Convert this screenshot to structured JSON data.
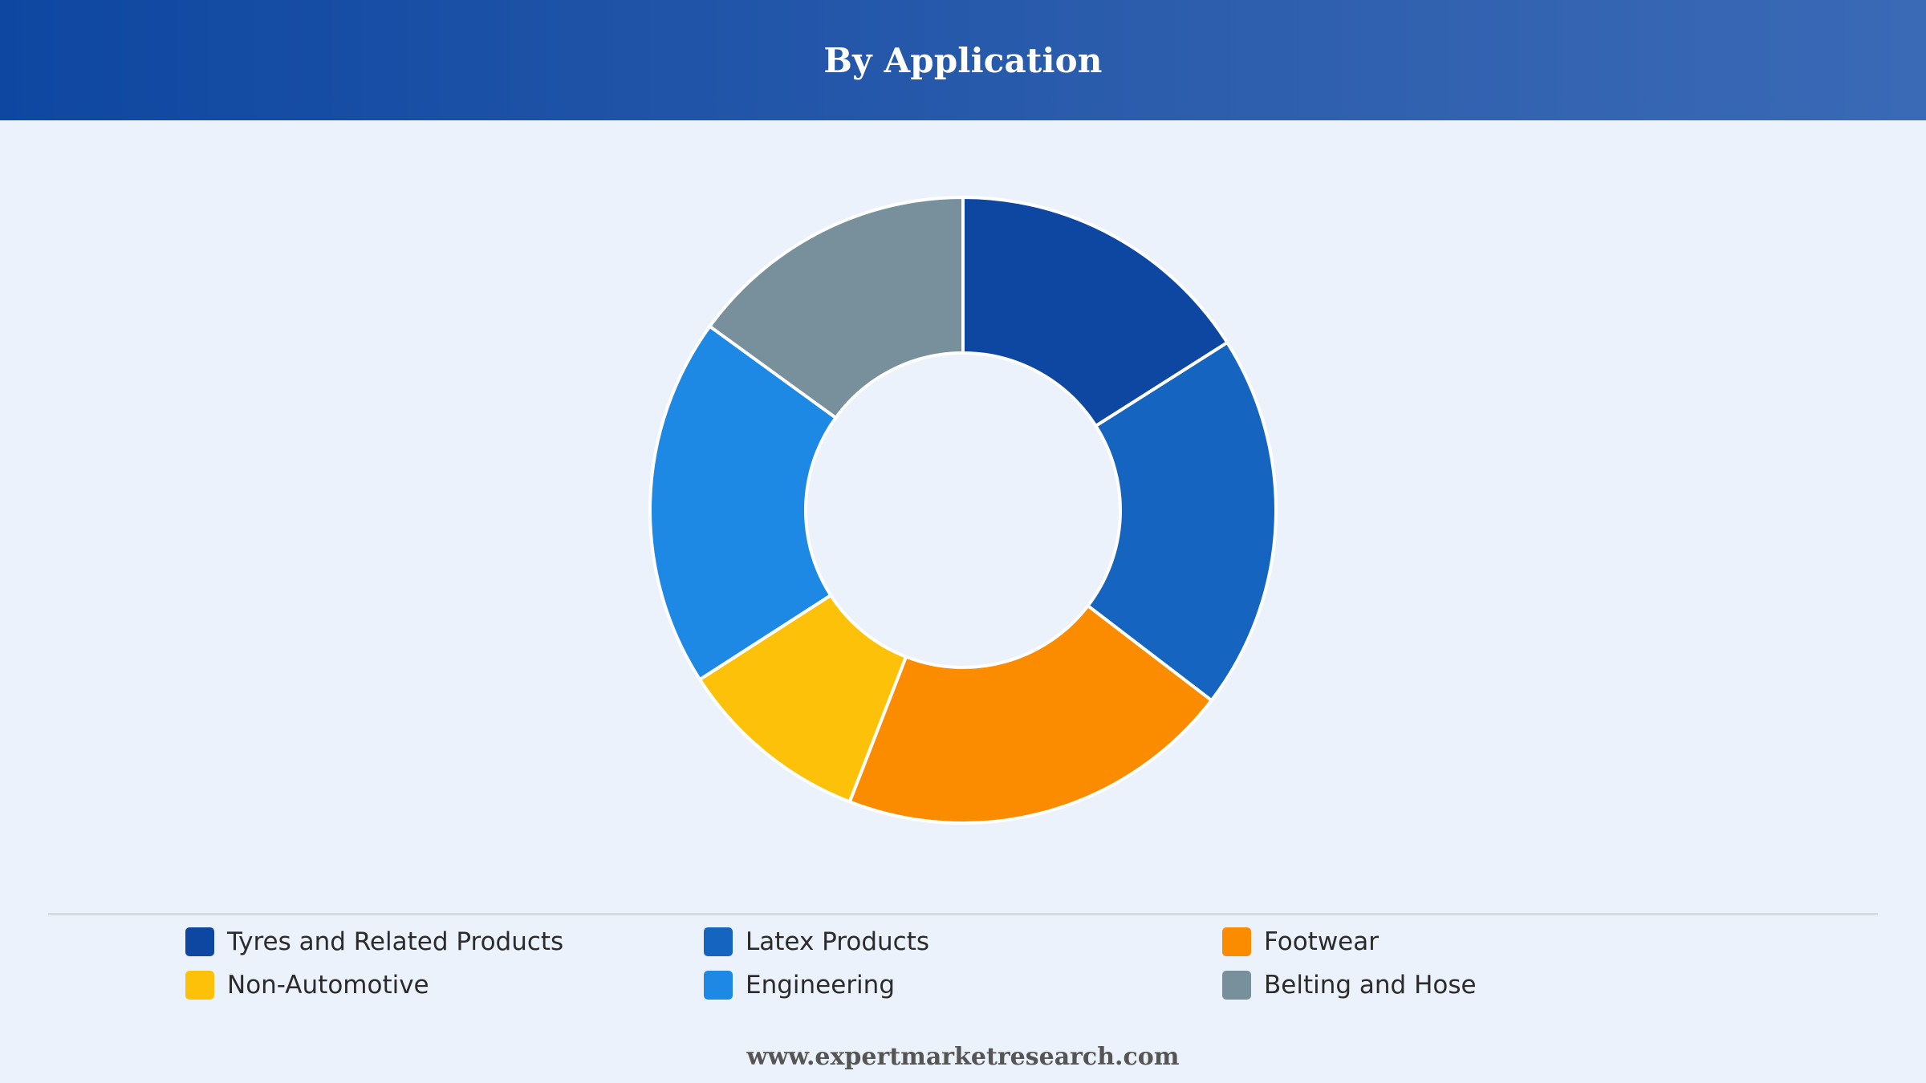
{
  "header": {
    "title": "By Application"
  },
  "chart_data": {
    "type": "pie",
    "variant": "donut",
    "title": "By Application",
    "categories": [
      "Tyres and Related Products",
      "Latex Products",
      "Footwear",
      "Non-Automotive",
      "Engineering",
      "Belting and Hose"
    ],
    "values": [
      16,
      19.4,
      20.5,
      10,
      19.1,
      15
    ],
    "unit": "%",
    "colors": [
      "#0e47a1",
      "#1565c0",
      "#fb8c00",
      "#fdc10a",
      "#1e88e5",
      "#78909c"
    ],
    "legend_position": "bottom"
  },
  "legend": {
    "items": [
      {
        "label": "Tyres and Related Products",
        "color": "#0e47a1"
      },
      {
        "label": "Latex Products",
        "color": "#1565c0"
      },
      {
        "label": "Footwear",
        "color": "#fb8c00"
      },
      {
        "label": "Non-Automotive",
        "color": "#fdc10a"
      },
      {
        "label": "Engineering",
        "color": "#1e88e5"
      },
      {
        "label": "Belting and Hose",
        "color": "#78909c"
      }
    ]
  },
  "footer": {
    "url": "www.expertmarketresearch.com"
  }
}
